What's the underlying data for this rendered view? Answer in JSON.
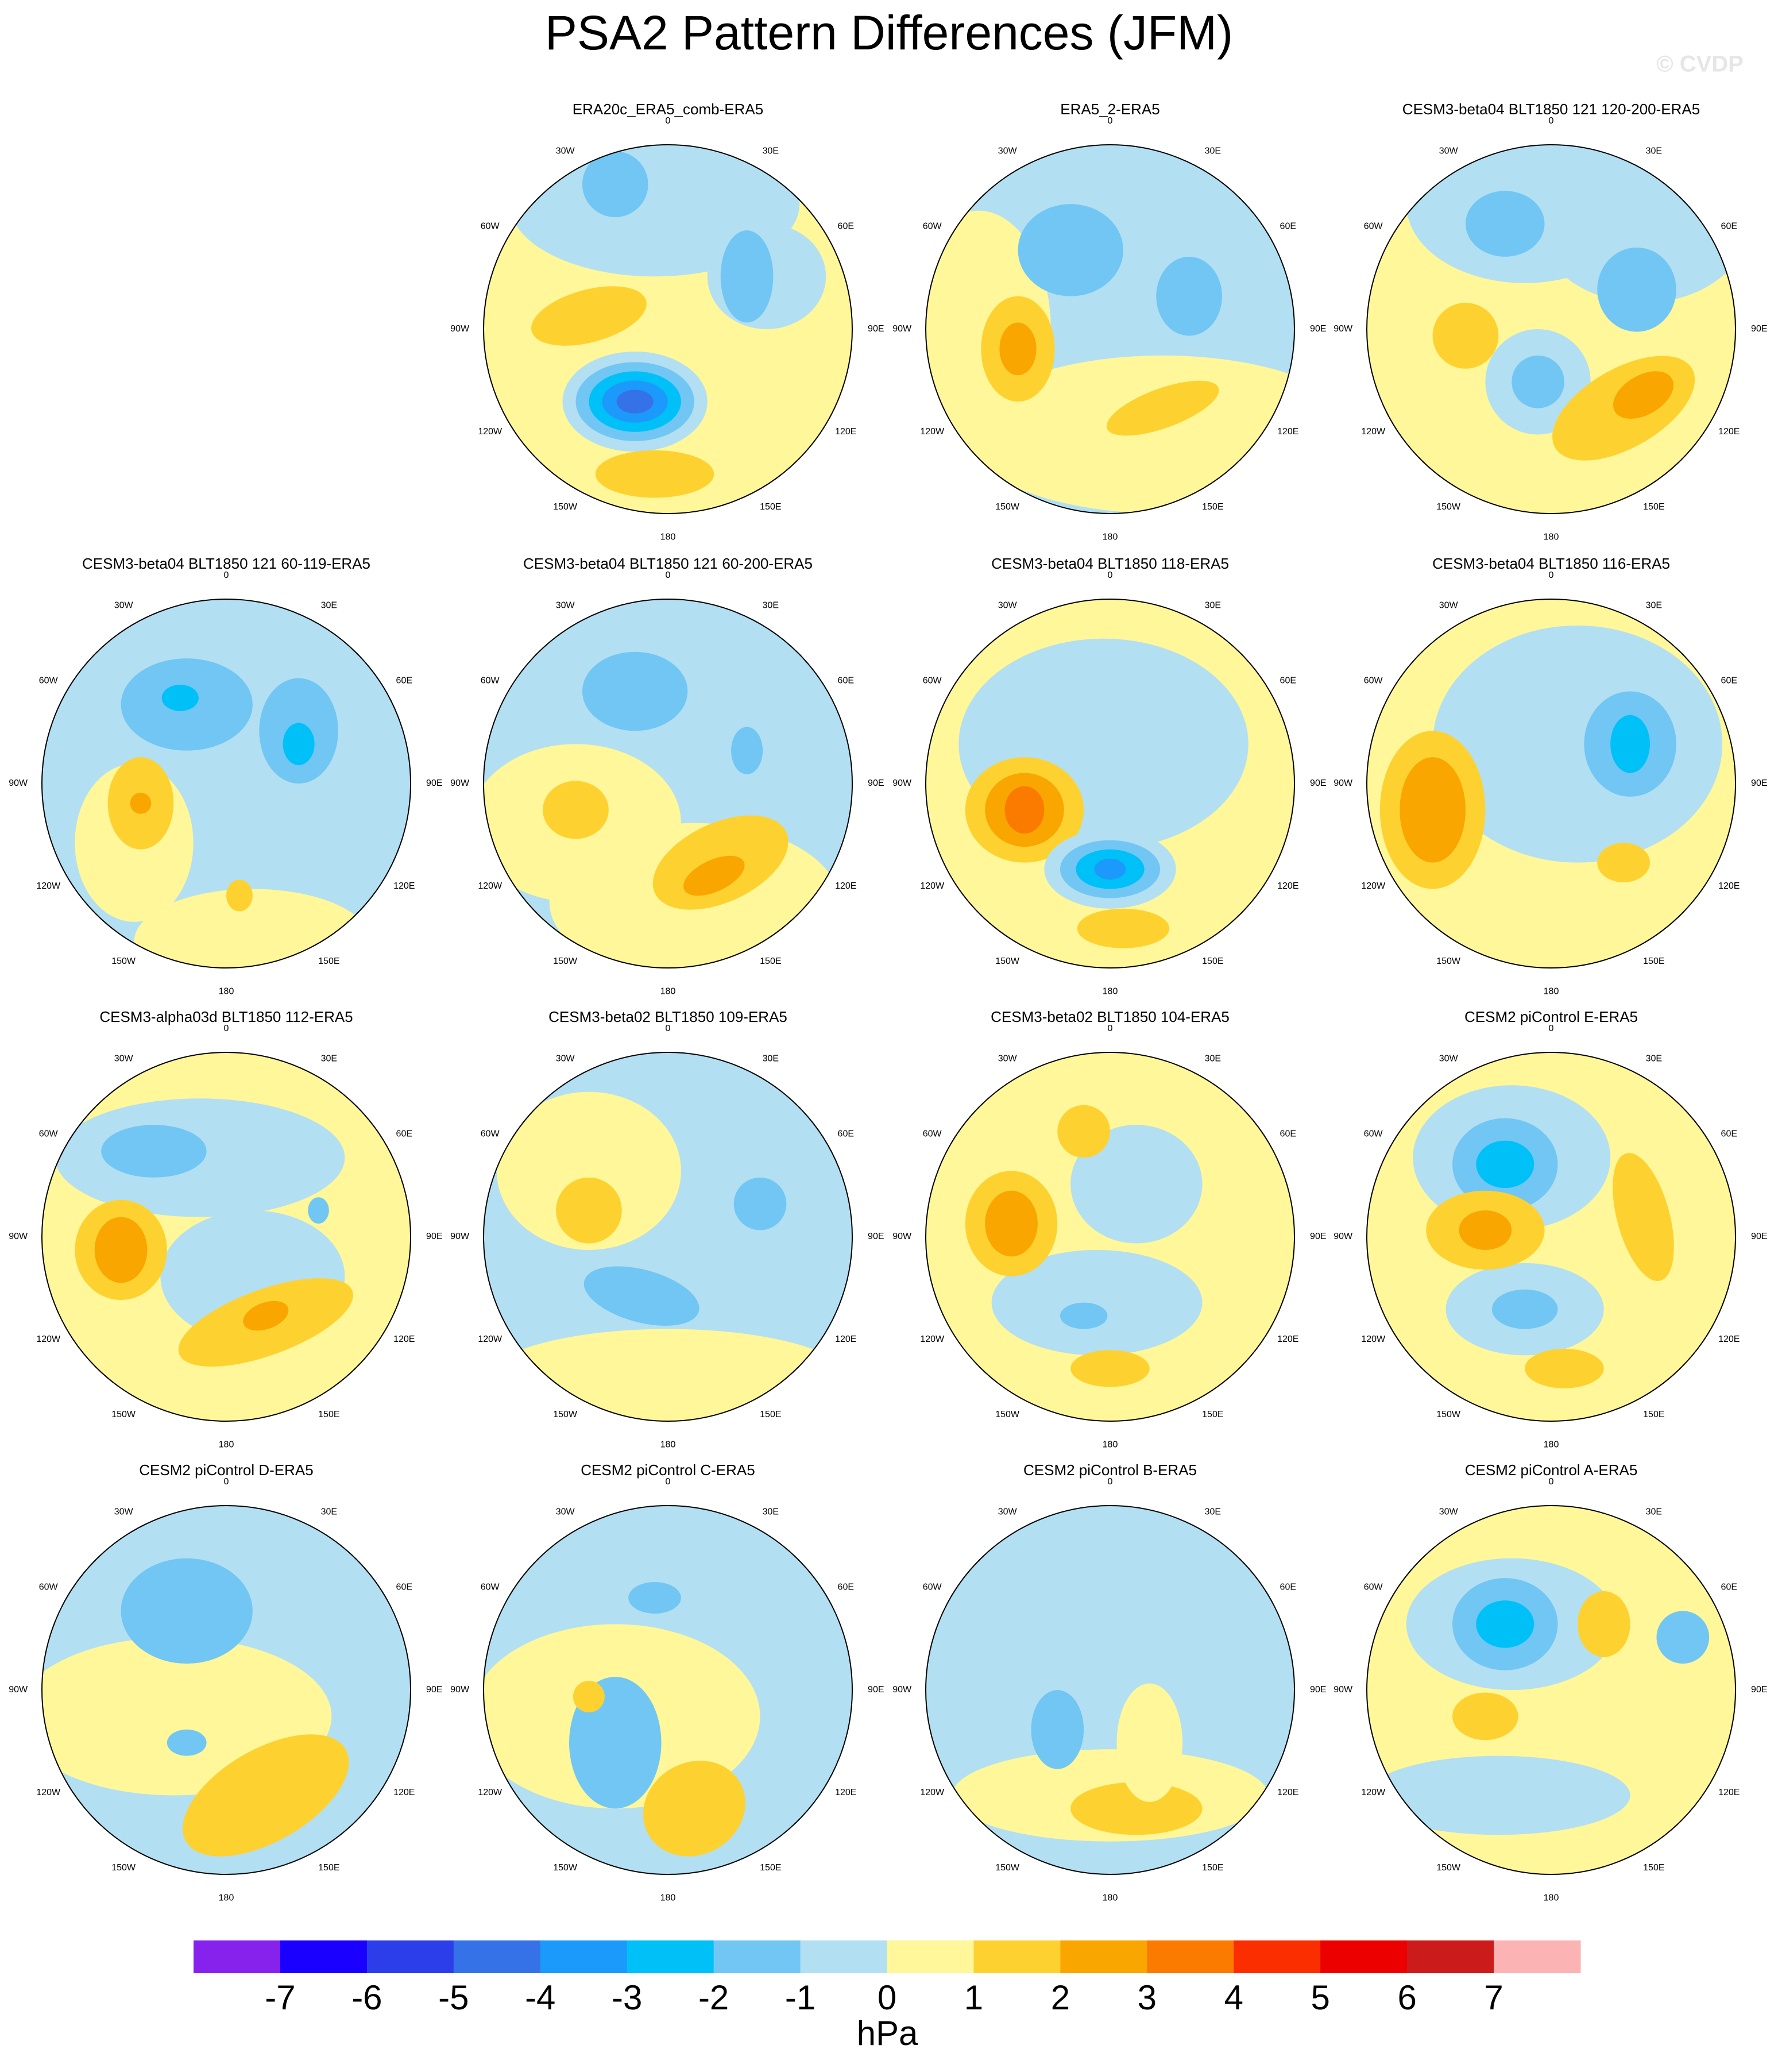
{
  "title": "PSA2 Pattern Differences (JFM)",
  "watermark": "© CVDP",
  "panels": [
    {
      "title": "ERA20c_ERA5_comb-ERA5"
    },
    {
      "title": "ERA5_2-ERA5"
    },
    {
      "title": "CESM3-beta04 BLT1850 121 120-200-ERA5"
    },
    {
      "title": "CESM3-beta04 BLT1850 121 60-119-ERA5"
    },
    {
      "title": "CESM3-beta04 BLT1850 121 60-200-ERA5"
    },
    {
      "title": "CESM3-beta04 BLT1850 118-ERA5"
    },
    {
      "title": "CESM3-beta04 BLT1850 116-ERA5"
    },
    {
      "title": "CESM3-alpha03d BLT1850 112-ERA5"
    },
    {
      "title": "CESM3-beta02 BLT1850 109-ERA5"
    },
    {
      "title": "CESM3-beta02 BLT1850 104-ERA5"
    },
    {
      "title": "CESM2 piControl E-ERA5"
    },
    {
      "title": "CESM2 piControl D-ERA5"
    },
    {
      "title": "CESM2 piControl C-ERA5"
    },
    {
      "title": "CESM2 piControl B-ERA5"
    },
    {
      "title": "CESM2 piControl A-ERA5"
    }
  ],
  "lon_labels": [
    "0",
    "30E",
    "60E",
    "90E",
    "120E",
    "150E",
    "180",
    "150W",
    "120W",
    "90W",
    "60W",
    "30W"
  ],
  "colorbar": {
    "colors": [
      "#8722ec",
      "#1a00ff",
      "#2c3ee9",
      "#3572e8",
      "#1b9afc",
      "#00c0f8",
      "#72c6f4",
      "#b3dff2",
      "#fff799",
      "#fdd230",
      "#f9a600",
      "#fb7a00",
      "#fb2e00",
      "#ec0000",
      "#cc1b1b",
      "#fbb3b3"
    ],
    "ticks": [
      -7,
      -6,
      -5,
      -4,
      -3,
      -2,
      -1,
      0,
      1,
      2,
      3,
      4,
      5,
      6,
      7
    ],
    "units": "hPa"
  }
}
